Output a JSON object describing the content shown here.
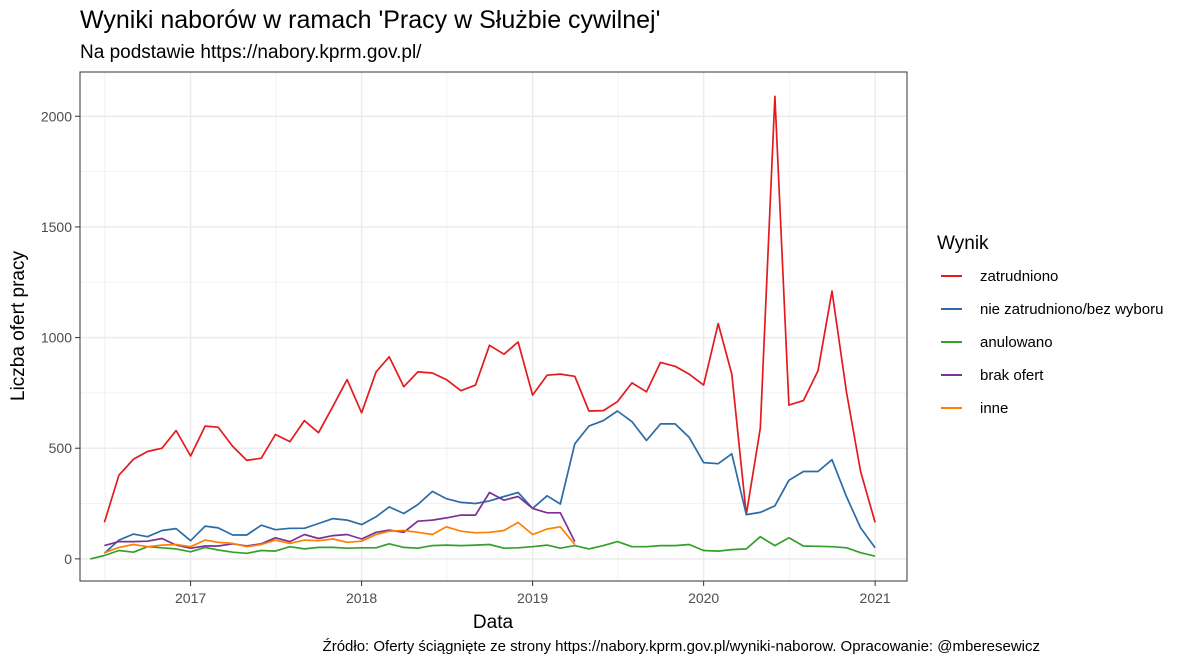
{
  "title": "Wyniki naborów w ramach 'Pracy w Służbie cywilnej'",
  "subtitle": "Na podstawie https://nabory.kprm.gov.pl/",
  "caption": "Źródło: Oferty ściągnięte ze strony https://nabory.kprm.gov.pl/wyniki-naborow. Opracowanie: @mberesewicz",
  "chart_data": {
    "type": "line",
    "xlabel": "Data",
    "ylabel": "Liczba ofert pracy",
    "x_ticks": [
      "2017",
      "2018",
      "2019",
      "2020",
      "2021"
    ],
    "y_ticks": [
      "0",
      "500",
      "1000",
      "1500",
      "2000"
    ],
    "xlim": [
      "2016-05-10",
      "2021-03-10"
    ],
    "ylim": [
      -100,
      2200
    ],
    "grid": true,
    "legend_title": "Wynik",
    "legend_position": "right",
    "series": [
      {
        "name": "zatrudniono",
        "color": "#E41A1C",
        "x": [
          "2016-07",
          "2016-08",
          "2016-09",
          "2016-10",
          "2016-11",
          "2016-12",
          "2017-01",
          "2017-02",
          "2017-03",
          "2017-04",
          "2017-05",
          "2017-06",
          "2017-07",
          "2017-08",
          "2017-09",
          "2017-10",
          "2017-11",
          "2017-12",
          "2018-01",
          "2018-02",
          "2018-03",
          "2018-04",
          "2018-05",
          "2018-06",
          "2018-07",
          "2018-08",
          "2018-09",
          "2018-10",
          "2018-11",
          "2018-12",
          "2019-01",
          "2019-02",
          "2019-03",
          "2019-04",
          "2019-05",
          "2019-06",
          "2019-07",
          "2019-08",
          "2019-09",
          "2019-10",
          "2019-11",
          "2019-12",
          "2020-01",
          "2020-02",
          "2020-03",
          "2020-04",
          "2020-05",
          "2020-06",
          "2020-07",
          "2020-08",
          "2020-09",
          "2020-10",
          "2020-11",
          "2020-12",
          "2021-01"
        ],
        "values": [
          165,
          378,
          450,
          485,
          500,
          580,
          465,
          600,
          595,
          508,
          445,
          455,
          562,
          530,
          625,
          570,
          690,
          810,
          660,
          845,
          913,
          778,
          845,
          840,
          810,
          760,
          785,
          965,
          925,
          980,
          740,
          830,
          835,
          825,
          668,
          670,
          710,
          795,
          755,
          888,
          870,
          835,
          785,
          1063,
          835,
          200,
          590,
          2090,
          695,
          715,
          850,
          1210,
          750,
          395,
          165
        ]
      },
      {
        "name": "nie zatrudniono/bez wyboru",
        "color": "#2C6BA6",
        "x": [
          "2016-07",
          "2016-08",
          "2016-09",
          "2016-10",
          "2016-11",
          "2016-12",
          "2017-01",
          "2017-02",
          "2017-03",
          "2017-04",
          "2017-05",
          "2017-06",
          "2017-07",
          "2017-08",
          "2017-09",
          "2017-10",
          "2017-11",
          "2017-12",
          "2018-01",
          "2018-02",
          "2018-03",
          "2018-04",
          "2018-05",
          "2018-06",
          "2018-07",
          "2018-08",
          "2018-09",
          "2018-10",
          "2018-11",
          "2018-12",
          "2019-01",
          "2019-02",
          "2019-03",
          "2019-04",
          "2019-05",
          "2019-06",
          "2019-07",
          "2019-08",
          "2019-09",
          "2019-10",
          "2019-11",
          "2019-12",
          "2020-01",
          "2020-02",
          "2020-03",
          "2020-04",
          "2020-05",
          "2020-06",
          "2020-07",
          "2020-08",
          "2020-09",
          "2020-10",
          "2020-11",
          "2020-12",
          "2021-01"
        ],
        "values": [
          25,
          85,
          112,
          100,
          128,
          137,
          82,
          148,
          140,
          108,
          108,
          152,
          132,
          138,
          138,
          160,
          182,
          175,
          155,
          190,
          235,
          205,
          245,
          305,
          272,
          255,
          250,
          262,
          282,
          300,
          228,
          285,
          248,
          520,
          600,
          625,
          668,
          620,
          535,
          610,
          610,
          550,
          435,
          430,
          475,
          200,
          210,
          240,
          355,
          395,
          395,
          448,
          280,
          140,
          50
        ]
      },
      {
        "name": "anulowano",
        "color": "#33A02C",
        "x": [
          "2016-06",
          "2016-07",
          "2016-08",
          "2016-09",
          "2016-10",
          "2016-11",
          "2016-12",
          "2017-01",
          "2017-02",
          "2017-03",
          "2017-04",
          "2017-05",
          "2017-06",
          "2017-07",
          "2017-08",
          "2017-09",
          "2017-10",
          "2017-11",
          "2017-12",
          "2018-01",
          "2018-02",
          "2018-03",
          "2018-04",
          "2018-05",
          "2018-06",
          "2018-07",
          "2018-08",
          "2018-09",
          "2018-10",
          "2018-11",
          "2018-12",
          "2019-01",
          "2019-02",
          "2019-03",
          "2019-04",
          "2019-05",
          "2019-06",
          "2019-07",
          "2019-08",
          "2019-09",
          "2019-10",
          "2019-11",
          "2019-12",
          "2020-01",
          "2020-02",
          "2020-03",
          "2020-04",
          "2020-05",
          "2020-06",
          "2020-07",
          "2020-08",
          "2020-09",
          "2020-10",
          "2020-11",
          "2020-12",
          "2021-01"
        ],
        "values": [
          0,
          15,
          38,
          30,
          55,
          50,
          45,
          32,
          52,
          40,
          30,
          25,
          38,
          35,
          55,
          45,
          52,
          52,
          48,
          50,
          50,
          68,
          52,
          48,
          60,
          62,
          60,
          62,
          65,
          48,
          50,
          55,
          62,
          48,
          60,
          45,
          60,
          78,
          55,
          55,
          60,
          60,
          65,
          38,
          35,
          42,
          45,
          100,
          60,
          95,
          58,
          57,
          55,
          50,
          28,
          12
        ]
      },
      {
        "name": "brak ofert",
        "color": "#7B3294",
        "x": [
          "2016-07",
          "2016-08",
          "2016-09",
          "2016-10",
          "2016-11",
          "2016-12",
          "2017-01",
          "2017-02",
          "2017-03",
          "2017-04",
          "2017-05",
          "2017-06",
          "2017-07",
          "2017-08",
          "2017-09",
          "2017-10",
          "2017-11",
          "2017-12",
          "2018-01",
          "2018-02",
          "2018-03",
          "2018-04",
          "2018-05",
          "2018-06",
          "2018-07",
          "2018-08",
          "2018-09",
          "2018-10",
          "2018-11",
          "2018-12",
          "2019-01",
          "2019-02",
          "2019-03",
          "2019-04"
        ],
        "values": [
          60,
          78,
          78,
          80,
          92,
          62,
          48,
          58,
          58,
          68,
          58,
          68,
          95,
          78,
          110,
          92,
          105,
          110,
          90,
          120,
          130,
          120,
          170,
          175,
          185,
          198,
          198,
          300,
          265,
          282,
          228,
          208,
          208,
          78
        ]
      },
      {
        "name": "inne",
        "color": "#FF7F00",
        "x": [
          "2016-07",
          "2016-08",
          "2016-09",
          "2016-10",
          "2016-11",
          "2016-12",
          "2017-01",
          "2017-02",
          "2017-03",
          "2017-04",
          "2017-05",
          "2017-06",
          "2017-07",
          "2017-08",
          "2017-09",
          "2017-10",
          "2017-11",
          "2017-12",
          "2018-01",
          "2018-02",
          "2018-03",
          "2018-04",
          "2018-05",
          "2018-06",
          "2018-07",
          "2018-08",
          "2018-09",
          "2018-10",
          "2018-11",
          "2018-12",
          "2019-01",
          "2019-02",
          "2019-03",
          "2019-04"
        ],
        "values": [
          28,
          52,
          65,
          55,
          62,
          65,
          55,
          85,
          75,
          70,
          55,
          65,
          85,
          70,
          85,
          82,
          90,
          75,
          80,
          110,
          125,
          128,
          120,
          110,
          145,
          125,
          118,
          120,
          128,
          165,
          110,
          135,
          145,
          65
        ]
      }
    ]
  }
}
